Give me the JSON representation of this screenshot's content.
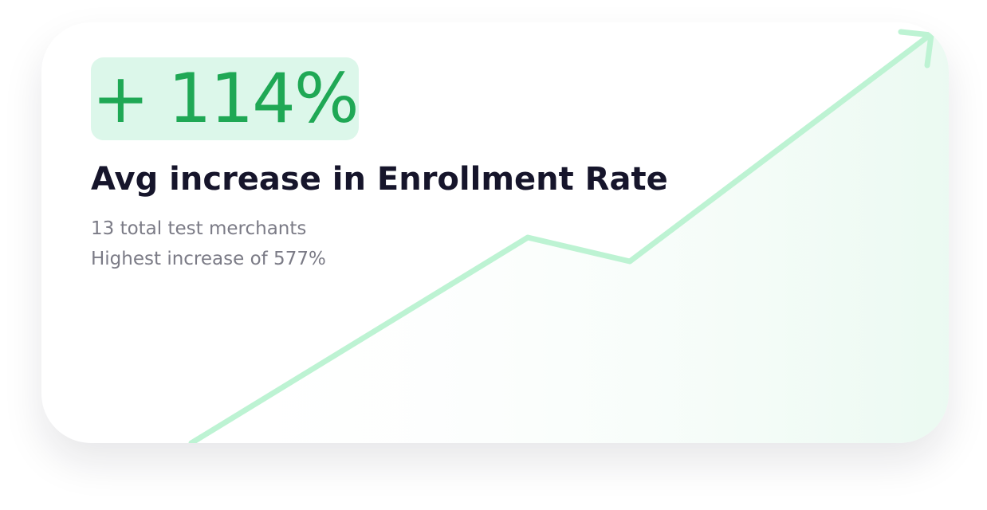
{
  "stat": "+ 114%",
  "title": "Avg increase in Enrollment Rate",
  "details": [
    "13 total test merchants",
    "Highest increase of 577%"
  ]
}
